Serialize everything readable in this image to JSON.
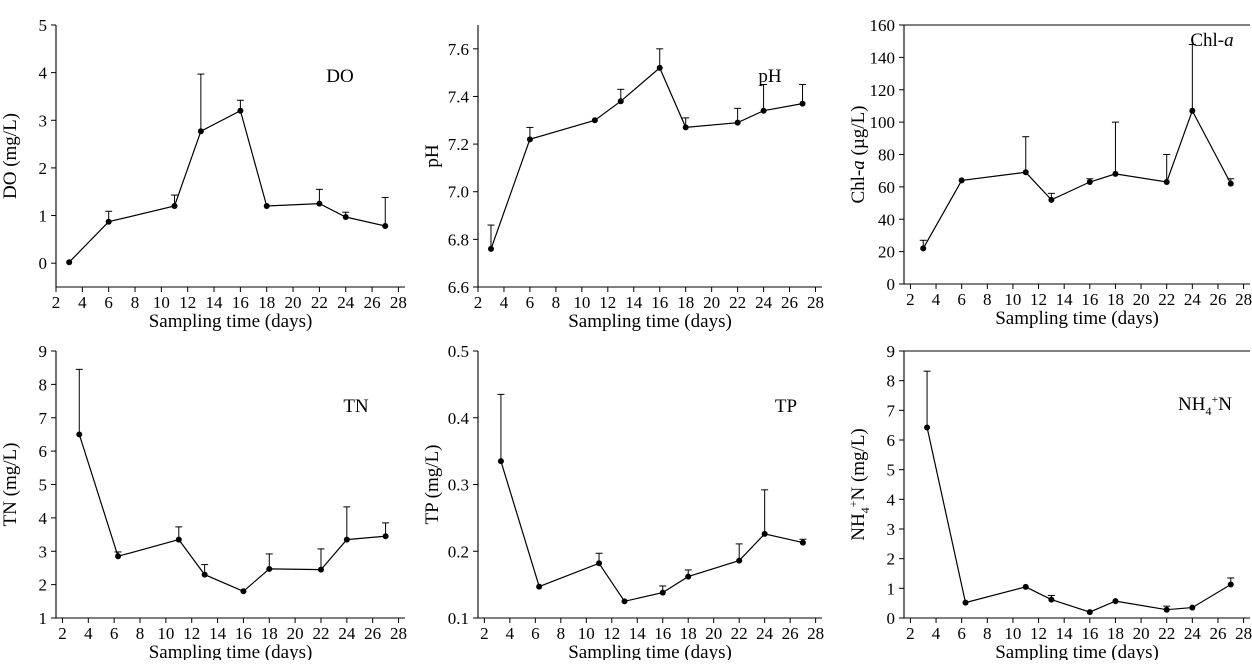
{
  "chart_data": [
    {
      "type": "line",
      "panel_label": "DO",
      "ylabel": "DO (mg/L)",
      "xlabel": "Sampling time (days)",
      "xlim": [
        2,
        28.5
      ],
      "ylim": [
        -0.5,
        5
      ],
      "xticks": [
        2,
        4,
        6,
        8,
        10,
        12,
        14,
        16,
        18,
        20,
        22,
        24,
        26,
        28
      ],
      "yticks": [
        0,
        1,
        2,
        3,
        4,
        5
      ],
      "x": [
        3,
        6,
        11,
        13,
        16,
        18,
        22,
        24,
        27
      ],
      "y": [
        0.02,
        0.87,
        1.2,
        2.77,
        3.2,
        1.2,
        1.25,
        0.97,
        0.78
      ],
      "err": [
        0,
        0.22,
        0.23,
        1.2,
        0.22,
        0,
        0.3,
        0.1,
        0.6
      ]
    },
    {
      "type": "line",
      "panel_label": "pH",
      "ylabel": "pH",
      "xlabel": "Sampling time (days)",
      "xlim": [
        2,
        28.5
      ],
      "ylim": [
        6.6,
        7.7
      ],
      "xticks": [
        2,
        4,
        6,
        8,
        10,
        12,
        14,
        16,
        18,
        20,
        22,
        24,
        26,
        28
      ],
      "yticks": [
        6.6,
        6.8,
        7.0,
        7.2,
        7.4,
        7.6
      ],
      "x": [
        3,
        6,
        11,
        13,
        16,
        18,
        22,
        24,
        27
      ],
      "y": [
        6.76,
        7.22,
        7.3,
        7.38,
        7.52,
        7.27,
        7.29,
        7.34,
        7.37
      ],
      "err": [
        0.1,
        0.05,
        0,
        0.05,
        0.08,
        0.04,
        0.06,
        0.11,
        0.08
      ]
    },
    {
      "type": "line",
      "panel_label_main": "Chl-",
      "panel_label_italic": "a",
      "ylabel_main": "Chl-",
      "ylabel_italic": "a",
      "ylabel_unit": " (µg/L)",
      "xlabel": "Sampling time (days)",
      "xlim": [
        1.5,
        28.5
      ],
      "ylim": [
        0,
        160
      ],
      "xticks": [
        2,
        4,
        6,
        8,
        10,
        12,
        14,
        16,
        18,
        20,
        22,
        24,
        26,
        28
      ],
      "yticks": [
        0,
        20,
        40,
        60,
        80,
        100,
        120,
        140,
        160
      ],
      "x": [
        3,
        6,
        11,
        13,
        16,
        18,
        22,
        24,
        27
      ],
      "y": [
        22,
        64,
        69,
        52,
        63,
        68,
        63,
        107,
        62
      ],
      "err": [
        5,
        0,
        22,
        4,
        2,
        32,
        17,
        41,
        3
      ]
    },
    {
      "type": "line",
      "panel_label": "TN",
      "ylabel": "TN (mg/L)",
      "xlabel": "Sampling time (days)",
      "xlim": [
        1.5,
        28.5
      ],
      "ylim": [
        1,
        9
      ],
      "xticks": [
        2,
        4,
        6,
        8,
        10,
        12,
        14,
        16,
        18,
        20,
        22,
        24,
        26,
        28
      ],
      "yticks": [
        1,
        2,
        3,
        4,
        5,
        6,
        7,
        8,
        9
      ],
      "x": [
        3.3,
        6.3,
        11,
        13,
        16,
        18,
        22,
        24,
        27
      ],
      "y": [
        6.5,
        2.85,
        3.35,
        2.3,
        1.8,
        2.47,
        2.45,
        3.35,
        3.45
      ],
      "err": [
        1.95,
        0.13,
        0.38,
        0.3,
        0,
        0.45,
        0.62,
        0.98,
        0.4
      ]
    },
    {
      "type": "line",
      "panel_label": "TP",
      "ylabel": "TP (mg/L)",
      "xlabel": "Sampling time (days)",
      "xlim": [
        1.5,
        28.5
      ],
      "ylim": [
        0.1,
        0.5
      ],
      "xticks": [
        2,
        4,
        6,
        8,
        10,
        12,
        14,
        16,
        18,
        20,
        22,
        24,
        26,
        28
      ],
      "yticks": [
        0.1,
        0.2,
        0.3,
        0.4,
        0.5
      ],
      "x": [
        3.3,
        6.3,
        11,
        13,
        16,
        18,
        22,
        24,
        27
      ],
      "y": [
        0.335,
        0.147,
        0.182,
        0.125,
        0.138,
        0.162,
        0.186,
        0.226,
        0.213
      ],
      "err": [
        0.1,
        0,
        0.015,
        0,
        0.01,
        0.01,
        0.025,
        0.066,
        0.005
      ]
    },
    {
      "type": "line",
      "panel_label": "NH4+-N",
      "ylabel": "NH4+-N (mg/L)",
      "xlabel": "Sampling time (days)",
      "xlim": [
        1.5,
        28.5
      ],
      "ylim": [
        0,
        9
      ],
      "xticks": [
        2,
        4,
        6,
        8,
        10,
        12,
        14,
        16,
        18,
        20,
        22,
        24,
        26,
        28
      ],
      "yticks": [
        0,
        1,
        2,
        3,
        4,
        5,
        6,
        7,
        8,
        9
      ],
      "x": [
        3.3,
        6.3,
        11,
        13,
        16,
        18,
        22,
        24,
        27
      ],
      "y": [
        6.42,
        0.52,
        1.05,
        0.62,
        0.2,
        0.57,
        0.28,
        0.35,
        1.13
      ],
      "err": [
        1.9,
        0,
        0,
        0.14,
        0,
        0,
        0.12,
        0,
        0.22
      ]
    }
  ]
}
